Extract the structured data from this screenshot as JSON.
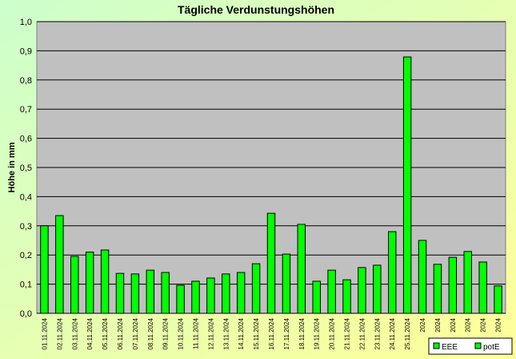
{
  "chart_data": {
    "type": "bar",
    "title": "Tägliche Verdunstungshöhen",
    "y_label": "Höhe in mm",
    "categories": [
      "01.11.2024",
      "02.11.2024",
      "03.11.2024",
      "04.11.2024",
      "05.11.2024",
      "06.11.2024",
      "07.11.2024",
      "08.11.2024",
      "09.11.2024",
      "10.11.2024",
      "11.11.2024",
      "12.11.2024",
      "13.11.2024",
      "14.11.2024",
      "15.11.2024",
      "16.11.2024",
      "17.11.2024",
      "18.11.2024",
      "19.11.2024",
      "20.11.2024",
      "21.11.2024",
      "22.11.2024",
      "23.11.2024",
      "24.11.2024",
      "25.11.2024",
      "2024",
      "2024",
      "2024",
      "2024",
      "2024",
      "2024"
    ],
    "series": [
      {
        "name": "EEE",
        "color": "#00ff00",
        "values": [
          null,
          null,
          null,
          null,
          null,
          null,
          null,
          null,
          null,
          null,
          null,
          null,
          null,
          null,
          null,
          null,
          null,
          null,
          null,
          null,
          null,
          null,
          null,
          null,
          null,
          null,
          null,
          null,
          null,
          null,
          null
        ]
      },
      {
        "name": "potE",
        "color": "#00ff00",
        "values": [
          0.3,
          0.335,
          0.195,
          0.21,
          0.217,
          0.137,
          0.135,
          0.148,
          0.14,
          0.096,
          0.11,
          0.121,
          0.135,
          0.14,
          0.17,
          0.343,
          0.203,
          0.305,
          0.11,
          0.148,
          0.115,
          0.157,
          0.165,
          0.28,
          0.879,
          0.25,
          0.168,
          0.192,
          0.212,
          0.176,
          0.094
        ]
      }
    ],
    "ylim": [
      0,
      1
    ],
    "yticks": [
      {
        "value": 0,
        "label": "0,0"
      },
      {
        "value": 0.1,
        "label": "0,1"
      },
      {
        "value": 0.2,
        "label": "0,2"
      },
      {
        "value": 0.3,
        "label": "0,3"
      },
      {
        "value": 0.4,
        "label": "0,4"
      },
      {
        "value": 0.5,
        "label": "0,5"
      },
      {
        "value": 0.6,
        "label": "0,6"
      },
      {
        "value": 0.7,
        "label": "0,7"
      },
      {
        "value": 0.8,
        "label": "0,8"
      },
      {
        "value": 0.9,
        "label": "0,9"
      },
      {
        "value": 1,
        "label": "1,0"
      }
    ],
    "grid": true,
    "legend": "bottom-right"
  }
}
